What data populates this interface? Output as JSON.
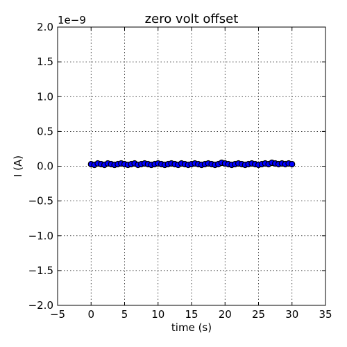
{
  "chart_data": {
    "type": "scatter",
    "title": "zero volt offset",
    "xlabel": "time (s)",
    "ylabel": "I (A)",
    "y_offset_label": "1e−9",
    "xlim": [
      -5,
      35
    ],
    "ylim": [
      -2.0,
      2.0
    ],
    "x_ticks": [
      -5,
      0,
      5,
      10,
      15,
      20,
      25,
      30,
      35
    ],
    "x_tick_labels": [
      "−5",
      "0",
      "5",
      "10",
      "15",
      "20",
      "25",
      "30",
      "35"
    ],
    "y_ticks": [
      -2.0,
      -1.5,
      -1.0,
      -0.5,
      0.0,
      0.5,
      1.0,
      1.5,
      2.0
    ],
    "y_tick_labels": [
      "−2.0",
      "−1.5",
      "−1.0",
      "−0.5",
      "0.0",
      "0.5",
      "1.0",
      "1.5",
      "2.0"
    ],
    "grid": true,
    "marker_color": "#0000ff",
    "marker_edge_color": "#000000",
    "series": [
      {
        "x": [
          0,
          0.5,
          1,
          1.5,
          2,
          2.5,
          3,
          3.5,
          4,
          4.5,
          5,
          5.5,
          6,
          6.5,
          7,
          7.5,
          8,
          8.5,
          9,
          9.5,
          10,
          10.5,
          11,
          11.5,
          12,
          12.5,
          13,
          13.5,
          14,
          14.5,
          15,
          15.5,
          16,
          16.5,
          17,
          17.5,
          18,
          18.5,
          19,
          19.5,
          20,
          20.5,
          21,
          21.5,
          22,
          22.5,
          23,
          23.5,
          24,
          24.5,
          25,
          25.5,
          26,
          26.5,
          27,
          27.5,
          28,
          28.5,
          29,
          29.5,
          30
        ],
        "y": [
          0.03,
          0.02,
          0.04,
          0.03,
          0.02,
          0.04,
          0.03,
          0.02,
          0.03,
          0.04,
          0.03,
          0.02,
          0.03,
          0.04,
          0.02,
          0.03,
          0.04,
          0.03,
          0.02,
          0.03,
          0.04,
          0.03,
          0.02,
          0.03,
          0.04,
          0.03,
          0.02,
          0.04,
          0.03,
          0.02,
          0.03,
          0.04,
          0.03,
          0.02,
          0.03,
          0.04,
          0.03,
          0.02,
          0.03,
          0.05,
          0.04,
          0.03,
          0.02,
          0.03,
          0.04,
          0.03,
          0.02,
          0.03,
          0.04,
          0.03,
          0.02,
          0.03,
          0.04,
          0.03,
          0.05,
          0.04,
          0.03,
          0.04,
          0.03,
          0.04,
          0.03
        ]
      }
    ]
  }
}
